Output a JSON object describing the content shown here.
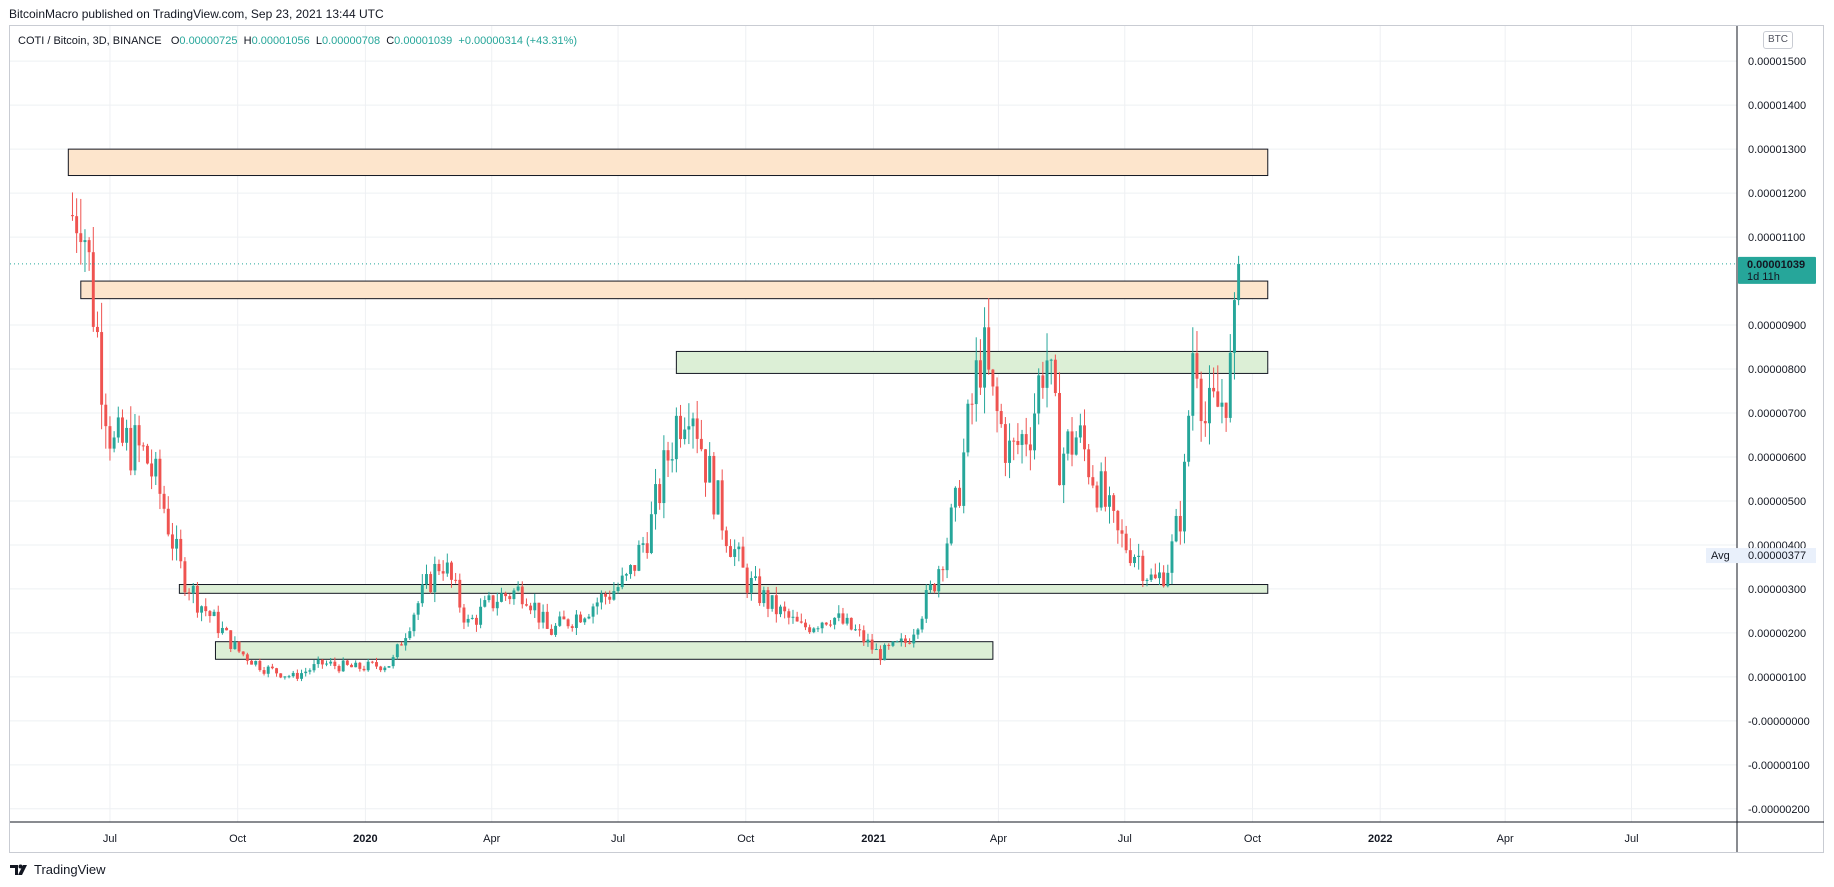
{
  "header": {
    "published": "BitcoinMacro published on TradingView.com, Sep 23, 2021 13:44 UTC"
  },
  "legend": {
    "symbol": "COTI / Bitcoin, 3D, BINANCE",
    "o_label": "O",
    "o_value": "0.00000725",
    "h_label": "H",
    "h_value": "0.00001056",
    "l_label": "L",
    "l_value": "0.00000708",
    "c_label": "C",
    "c_value": "0.00001039",
    "change": "+0.00000314 (+43.31%)"
  },
  "currency_chip": "BTC",
  "price_badge": {
    "value": "0.00001039",
    "countdown": "1d 11h"
  },
  "avg_badge": {
    "label": "Avg",
    "value": "0.00000377"
  },
  "footer": {
    "brand": "TradingView"
  },
  "colors": {
    "up": "#26a69a",
    "down": "#ef5350",
    "resistance_zone": "#fde5cc",
    "support_zone": "#dcefd6",
    "grid": "#eef0f3",
    "badge": "#26a69a"
  },
  "chart_data": {
    "type": "candlestick",
    "y_scale": "linear",
    "y_range": [
      -2.3e-06,
      1.58e-05
    ],
    "x_range": [
      "2019-04-20",
      "2022-09-15"
    ],
    "y_tick_labels": [
      "0.00001500",
      "0.00001400",
      "0.00001300",
      "0.00001200",
      "0.00001100",
      "0.00000900",
      "0.00000800",
      "0.00000700",
      "0.00000600",
      "0.00000500",
      "0.00000400",
      "0.00000300",
      "0.00000200",
      "0.00000100",
      "-0.00000000",
      "-0.00000100",
      "-0.00000200"
    ],
    "x_ticks": [
      {
        "label": "Jul",
        "date": "2019-07-01"
      },
      {
        "label": "Oct",
        "date": "2019-10-01"
      },
      {
        "label": "2020",
        "date": "2020-01-01"
      },
      {
        "label": "Apr",
        "date": "2020-04-01"
      },
      {
        "label": "Jul",
        "date": "2020-07-01"
      },
      {
        "label": "Oct",
        "date": "2020-10-01"
      },
      {
        "label": "2021",
        "date": "2021-01-01"
      },
      {
        "label": "Apr",
        "date": "2021-04-01"
      },
      {
        "label": "Jul",
        "date": "2021-07-01"
      },
      {
        "label": "Oct",
        "date": "2021-10-01"
      },
      {
        "label": "2022",
        "date": "2022-01-01"
      },
      {
        "label": "Apr",
        "date": "2022-04-01"
      },
      {
        "label": "Jul",
        "date": "2022-07-01"
      }
    ],
    "last_price": 1.039e-05,
    "average": 3.77e-06,
    "zones": [
      {
        "kind": "resistance",
        "from": "2019-06-01",
        "to": "2021-10-12",
        "low": 1.24e-05,
        "high": 1.3e-05
      },
      {
        "kind": "resistance",
        "from": "2019-06-10",
        "to": "2021-10-12",
        "low": 9.6e-06,
        "high": 1e-05
      },
      {
        "kind": "support",
        "from": "2020-08-12",
        "to": "2021-10-12",
        "low": 7.9e-06,
        "high": 8.4e-06
      },
      {
        "kind": "support",
        "from": "2019-08-20",
        "to": "2021-10-12",
        "low": 2.9e-06,
        "high": 3.1e-06
      },
      {
        "kind": "support",
        "from": "2019-09-15",
        "to": "2021-03-28",
        "low": 1.4e-06,
        "high": 1.8e-06
      }
    ],
    "close_path": [
      {
        "date": "2019-06-04",
        "close": 1.15e-05
      },
      {
        "date": "2019-06-10",
        "close": 1.2e-05
      },
      {
        "date": "2019-06-16",
        "close": 1.03e-05
      },
      {
        "date": "2019-06-24",
        "close": 8.2e-06
      },
      {
        "date": "2019-07-03",
        "close": 6.2e-06
      },
      {
        "date": "2019-07-15",
        "close": 6.3e-06
      },
      {
        "date": "2019-07-27",
        "close": 6e-06
      },
      {
        "date": "2019-08-08",
        "close": 5e-06
      },
      {
        "date": "2019-08-20",
        "close": 3.5e-06
      },
      {
        "date": "2019-09-01",
        "close": 2.8e-06
      },
      {
        "date": "2019-09-16",
        "close": 2.2e-06
      },
      {
        "date": "2019-10-01",
        "close": 1.6e-06
      },
      {
        "date": "2019-10-20",
        "close": 1.2e-06
      },
      {
        "date": "2019-11-10",
        "close": 1e-06
      },
      {
        "date": "2019-12-01",
        "close": 1.3e-06
      },
      {
        "date": "2019-12-25",
        "close": 1.2e-06
      },
      {
        "date": "2020-01-20",
        "close": 1.3e-06
      },
      {
        "date": "2020-02-05",
        "close": 2.5e-06
      },
      {
        "date": "2020-02-25",
        "close": 3.7e-06
      },
      {
        "date": "2020-03-15",
        "close": 2.2e-06
      },
      {
        "date": "2020-04-05",
        "close": 2.8e-06
      },
      {
        "date": "2020-04-25",
        "close": 3e-06
      },
      {
        "date": "2020-05-12",
        "close": 2e-06
      },
      {
        "date": "2020-06-01",
        "close": 2.4e-06
      },
      {
        "date": "2020-06-20",
        "close": 2.8e-06
      },
      {
        "date": "2020-07-08",
        "close": 3.2e-06
      },
      {
        "date": "2020-07-25",
        "close": 4.5e-06
      },
      {
        "date": "2020-08-12",
        "close": 6.8e-06
      },
      {
        "date": "2020-08-22",
        "close": 7.6e-06
      },
      {
        "date": "2020-09-01",
        "close": 6e-06
      },
      {
        "date": "2020-09-15",
        "close": 4.5e-06
      },
      {
        "date": "2020-10-01",
        "close": 3.2e-06
      },
      {
        "date": "2020-10-20",
        "close": 2.6e-06
      },
      {
        "date": "2020-11-10",
        "close": 2.1e-06
      },
      {
        "date": "2020-12-01",
        "close": 2.4e-06
      },
      {
        "date": "2020-12-20",
        "close": 2e-06
      },
      {
        "date": "2021-01-05",
        "close": 1.5e-06
      },
      {
        "date": "2021-01-25",
        "close": 1.8e-06
      },
      {
        "date": "2021-02-12",
        "close": 3e-06
      },
      {
        "date": "2021-03-01",
        "close": 4.8e-06
      },
      {
        "date": "2021-03-12",
        "close": 7e-06
      },
      {
        "date": "2021-03-20",
        "close": 8.5e-06
      },
      {
        "date": "2021-03-28",
        "close": 7.2e-06
      },
      {
        "date": "2021-04-10",
        "close": 6e-06
      },
      {
        "date": "2021-04-25",
        "close": 6.8e-06
      },
      {
        "date": "2021-05-05",
        "close": 8.5e-06
      },
      {
        "date": "2021-05-15",
        "close": 6e-06
      },
      {
        "date": "2021-05-28",
        "close": 6.5e-06
      },
      {
        "date": "2021-06-10",
        "close": 5.5e-06
      },
      {
        "date": "2021-06-25",
        "close": 4.2e-06
      },
      {
        "date": "2021-07-10",
        "close": 3.8e-06
      },
      {
        "date": "2021-07-22",
        "close": 3.1e-06
      },
      {
        "date": "2021-08-02",
        "close": 3.6e-06
      },
      {
        "date": "2021-08-12",
        "close": 5e-06
      },
      {
        "date": "2021-08-20",
        "close": 9e-06
      },
      {
        "date": "2021-08-28",
        "close": 6.8e-06
      },
      {
        "date": "2021-09-08",
        "close": 7.2e-06
      },
      {
        "date": "2021-09-16",
        "close": 8e-06
      },
      {
        "date": "2021-09-23",
        "close": 1.039e-05
      }
    ]
  }
}
